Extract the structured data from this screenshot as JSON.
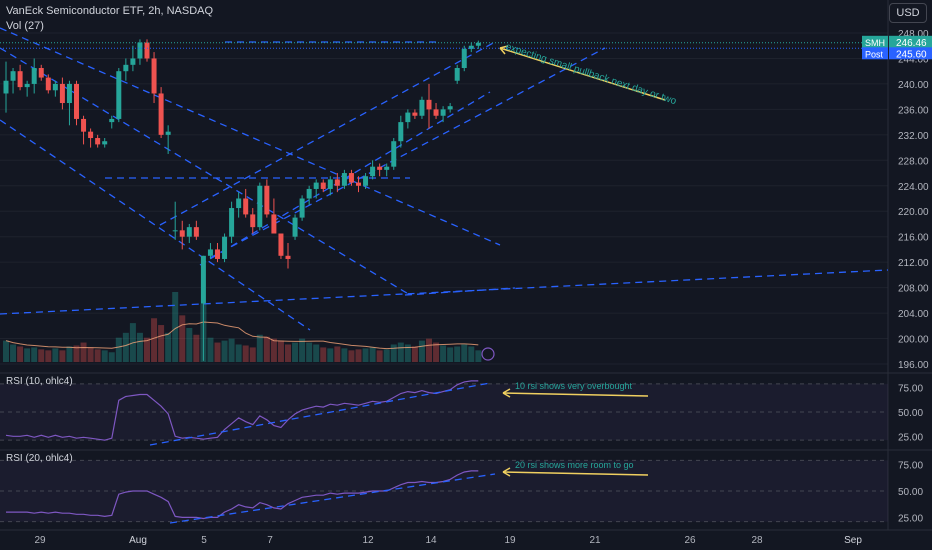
{
  "header": {
    "title": "VanEck Semiconductor ETF, 2h, NASDAQ",
    "volume_label": "Vol (27)",
    "currency": "USD"
  },
  "price_badges": {
    "last": {
      "label": "SMH",
      "value": "246.46",
      "color": "#26a69a"
    },
    "post": {
      "label": "Post",
      "value": "245.60",
      "color": "#2962ff"
    }
  },
  "colors": {
    "bg": "#131722",
    "up": "#26a69a",
    "down": "#ef5350",
    "trend": "#2962ff",
    "rsi": "#7e57c2",
    "ma": "#f7a67a",
    "annotation": "#f0d060",
    "grid": "#1e222d",
    "text": "#b2b5be"
  },
  "chart_data": [
    {
      "type": "candlestick",
      "ylim": [
        196,
        248
      ],
      "y_ticks": [
        "248.00",
        "244.00",
        "240.00",
        "236.00",
        "232.00",
        "228.00",
        "224.00",
        "220.00",
        "216.00",
        "212.00",
        "208.00",
        "204.00",
        "200.00",
        "196.00"
      ],
      "x_ticks": [
        "29",
        "Aug",
        "5",
        "7",
        "12",
        "14",
        "19",
        "21",
        "26",
        "28",
        "Sep"
      ],
      "candles": [
        [
          238.5,
          243.5,
          235.5,
          240.5
        ],
        [
          240.5,
          242.5,
          238.5,
          242.0
        ],
        [
          242.0,
          243.0,
          239.0,
          239.5
        ],
        [
          239.5,
          240.5,
          238.0,
          240.0
        ],
        [
          240.0,
          244.0,
          238.5,
          242.5
        ],
        [
          242.5,
          243.0,
          240.5,
          241.0
        ],
        [
          241.0,
          241.5,
          238.5,
          239.0
        ],
        [
          239.0,
          240.5,
          238.0,
          240.0
        ],
        [
          240.0,
          241.0,
          236.0,
          237.0
        ],
        [
          237.0,
          240.5,
          233.5,
          240.0
        ],
        [
          240.0,
          240.5,
          233.5,
          234.5
        ],
        [
          234.5,
          235.0,
          230.5,
          232.5
        ],
        [
          232.5,
          233.0,
          230.0,
          231.5
        ],
        [
          231.5,
          232.0,
          230.0,
          230.5
        ],
        [
          230.5,
          231.5,
          230.0,
          231.0
        ],
        [
          234.0,
          235.0,
          233.0,
          234.5
        ],
        [
          234.5,
          242.5,
          234.0,
          242.0
        ],
        [
          242.0,
          244.0,
          240.5,
          243.0
        ],
        [
          243.0,
          246.0,
          242.0,
          244.0
        ],
        [
          244.0,
          247.0,
          243.0,
          246.5
        ],
        [
          246.5,
          247.0,
          243.5,
          244.0
        ],
        [
          244.0,
          245.0,
          237.0,
          238.5
        ],
        [
          238.5,
          239.5,
          231.5,
          232.0
        ],
        [
          232.0,
          233.5,
          229.0,
          232.5
        ],
        [
          217.0,
          221.5,
          215.5,
          217.0
        ],
        [
          217.0,
          218.5,
          214.0,
          216.0
        ],
        [
          216.0,
          218.0,
          215.0,
          217.5
        ],
        [
          217.5,
          218.5,
          215.5,
          216.0
        ],
        [
          205.5,
          213.0,
          196.5,
          213.0
        ],
        [
          213.0,
          215.0,
          212.5,
          214.0
        ],
        [
          214.0,
          215.0,
          212.0,
          212.5
        ],
        [
          212.5,
          216.5,
          212.0,
          216.0
        ],
        [
          216.0,
          221.5,
          215.0,
          220.5
        ],
        [
          220.5,
          223.0,
          219.0,
          222.0
        ],
        [
          222.0,
          223.5,
          219.0,
          219.5
        ],
        [
          219.5,
          220.5,
          216.5,
          217.5
        ],
        [
          217.5,
          224.5,
          217.0,
          224.0
        ],
        [
          224.0,
          225.0,
          219.0,
          219.5
        ],
        [
          219.5,
          222.0,
          216.5,
          216.5
        ],
        [
          216.5,
          216.5,
          212.5,
          213.0
        ],
        [
          213.0,
          215.0,
          211.0,
          212.5
        ],
        [
          216.0,
          219.5,
          215.5,
          219.0
        ],
        [
          219.0,
          222.5,
          218.5,
          222.0
        ],
        [
          222.0,
          224.0,
          221.0,
          223.5
        ],
        [
          223.5,
          225.0,
          222.0,
          224.5
        ],
        [
          224.5,
          225.0,
          223.0,
          223.5
        ],
        [
          223.5,
          225.5,
          222.5,
          225.0
        ],
        [
          225.0,
          226.0,
          223.0,
          224.0
        ],
        [
          224.0,
          226.5,
          223.5,
          226.0
        ],
        [
          226.0,
          226.5,
          224.0,
          224.5
        ],
        [
          224.5,
          225.5,
          223.0,
          224.0
        ],
        [
          224.0,
          226.0,
          223.5,
          225.5
        ],
        [
          225.5,
          228.0,
          225.0,
          227.0
        ],
        [
          227.0,
          227.5,
          225.5,
          226.5
        ],
        [
          226.5,
          227.5,
          225.5,
          227.0
        ],
        [
          227.0,
          231.5,
          226.5,
          231.0
        ],
        [
          231.0,
          235.0,
          230.0,
          234.0
        ],
        [
          234.0,
          236.0,
          233.0,
          235.5
        ],
        [
          235.5,
          236.0,
          234.5,
          235.0
        ],
        [
          235.0,
          238.0,
          234.5,
          237.5
        ],
        [
          237.5,
          240.0,
          233.0,
          236.0
        ],
        [
          236.0,
          237.0,
          234.5,
          235.0
        ],
        [
          235.0,
          236.5,
          234.0,
          236.0
        ],
        [
          236.0,
          237.0,
          235.5,
          236.5
        ],
        [
          240.5,
          243.0,
          240.0,
          242.5
        ],
        [
          242.5,
          246.0,
          242.0,
          245.5
        ],
        [
          245.5,
          246.5,
          245.0,
          246.0
        ],
        [
          246.0,
          246.8,
          245.5,
          246.46
        ]
      ],
      "volume": [
        22,
        18,
        16,
        14,
        15,
        13,
        12,
        14,
        12,
        16,
        17,
        20,
        15,
        13,
        12,
        10,
        25,
        30,
        40,
        30,
        25,
        45,
        38,
        30,
        72,
        48,
        35,
        28,
        60,
        25,
        20,
        22,
        24,
        18,
        17,
        15,
        28,
        26,
        24,
        22,
        18,
        20,
        24,
        20,
        18,
        15,
        14,
        16,
        14,
        12,
        13,
        14,
        15,
        12,
        13,
        18,
        20,
        18,
        16,
        22,
        24,
        20,
        17,
        15,
        16,
        18,
        16,
        12
      ],
      "volume_ma_label": ""
    },
    {
      "type": "line",
      "title": "RSI (10, ohlc4)",
      "ylim": [
        15,
        85
      ],
      "y_ticks": [
        "75.00",
        "50.00",
        "25.00"
      ],
      "values": [
        26,
        25,
        25,
        26,
        24,
        26,
        24,
        26,
        24,
        25,
        23,
        24,
        23,
        22,
        21,
        23,
        62,
        66,
        67,
        68,
        68,
        62,
        56,
        48,
        25,
        23,
        24,
        23,
        22,
        23,
        24,
        32,
        38,
        44,
        40,
        37,
        46,
        42,
        36,
        34,
        42,
        48,
        52,
        54,
        56,
        55,
        58,
        57,
        59,
        58,
        57,
        59,
        61,
        60,
        61,
        65,
        69,
        71,
        70,
        72,
        70,
        69,
        71,
        73,
        78,
        81,
        82,
        82
      ],
      "annotation": "10 rsi shows very overbought"
    },
    {
      "type": "line",
      "title": "RSI (20, ohlc4)",
      "ylim": [
        15,
        85
      ],
      "y_ticks": [
        "75.00",
        "50.00",
        "25.00"
      ],
      "values": [
        30,
        30,
        30,
        30,
        29,
        30,
        29,
        30,
        29,
        29,
        28,
        28,
        27,
        27,
        26,
        27,
        47,
        49,
        50,
        50,
        50,
        47,
        44,
        40,
        26,
        25,
        25,
        25,
        24,
        25,
        25,
        30,
        33,
        37,
        35,
        34,
        39,
        37,
        34,
        33,
        38,
        41,
        44,
        45,
        46,
        46,
        48,
        47,
        48,
        48,
        48,
        49,
        50,
        50,
        50,
        53,
        56,
        58,
        58,
        59,
        58,
        58,
        59,
        61,
        65,
        68,
        69,
        69
      ],
      "annotation": "20 rsi shows more room to go"
    }
  ],
  "annotations": {
    "price_note": "expecting small pullback next day or two"
  }
}
